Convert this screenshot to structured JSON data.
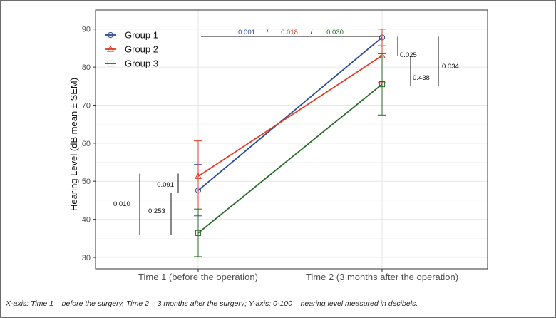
{
  "chart_data": {
    "type": "line",
    "ylabel": "Hearing Level (dB mean ± SEM)",
    "xlabel": "",
    "categories": [
      "Time 1 (before the operation)",
      "Time 2 (3 months after the operation)"
    ],
    "ylim": [
      27,
      95
    ],
    "yticks": [
      30,
      40,
      50,
      60,
      70,
      80,
      90
    ],
    "grid": true,
    "legend_position": "top-left",
    "series": [
      {
        "name": "Group 1",
        "color": "#2b4a9a",
        "marker": "circle",
        "values": [
          47.6,
          87.8
        ],
        "err_low": [
          40.9,
          85.6
        ],
        "err_high": [
          54.4,
          90.0
        ]
      },
      {
        "name": "Group 2",
        "color": "#e03c24",
        "marker": "triangle",
        "values": [
          51.3,
          83.0
        ],
        "err_low": [
          41.9,
          75.9
        ],
        "err_high": [
          60.6,
          90.0
        ]
      },
      {
        "name": "Group 3",
        "color": "#2a6b2a",
        "marker": "square",
        "values": [
          36.4,
          75.5
        ],
        "err_low": [
          30.2,
          67.4
        ],
        "err_high": [
          42.7,
          83.5
        ]
      }
    ],
    "annotations": {
      "top_pvalues": [
        {
          "text": "0.001",
          "color": "#2b4a9a"
        },
        {
          "text": "/",
          "color": "#111111"
        },
        {
          "text": "0.018",
          "color": "#e03c24"
        },
        {
          "text": "/",
          "color": "#111111"
        },
        {
          "text": "0.030",
          "color": "#2a6b2a"
        }
      ],
      "time1_pvalues": [
        {
          "text": "0.091",
          "range": [
            47.0,
            52.0
          ]
        },
        {
          "text": "0.010",
          "range": [
            36.0,
            52.0
          ]
        },
        {
          "text": "0.253",
          "range": [
            36.0,
            47.0
          ]
        }
      ],
      "time2_pvalues": [
        {
          "text": "0.025",
          "range": [
            83.0,
            88.0
          ]
        },
        {
          "text": "0.438",
          "range": [
            75.0,
            83.0
          ]
        },
        {
          "text": "0.034",
          "range": [
            75.0,
            88.0
          ]
        }
      ]
    }
  },
  "caption": "X-axis: Time 1 – before the surgery, Time 2 – 3 months after the surgery; Y-axis: 0-100 – hearing level measured in decibels."
}
